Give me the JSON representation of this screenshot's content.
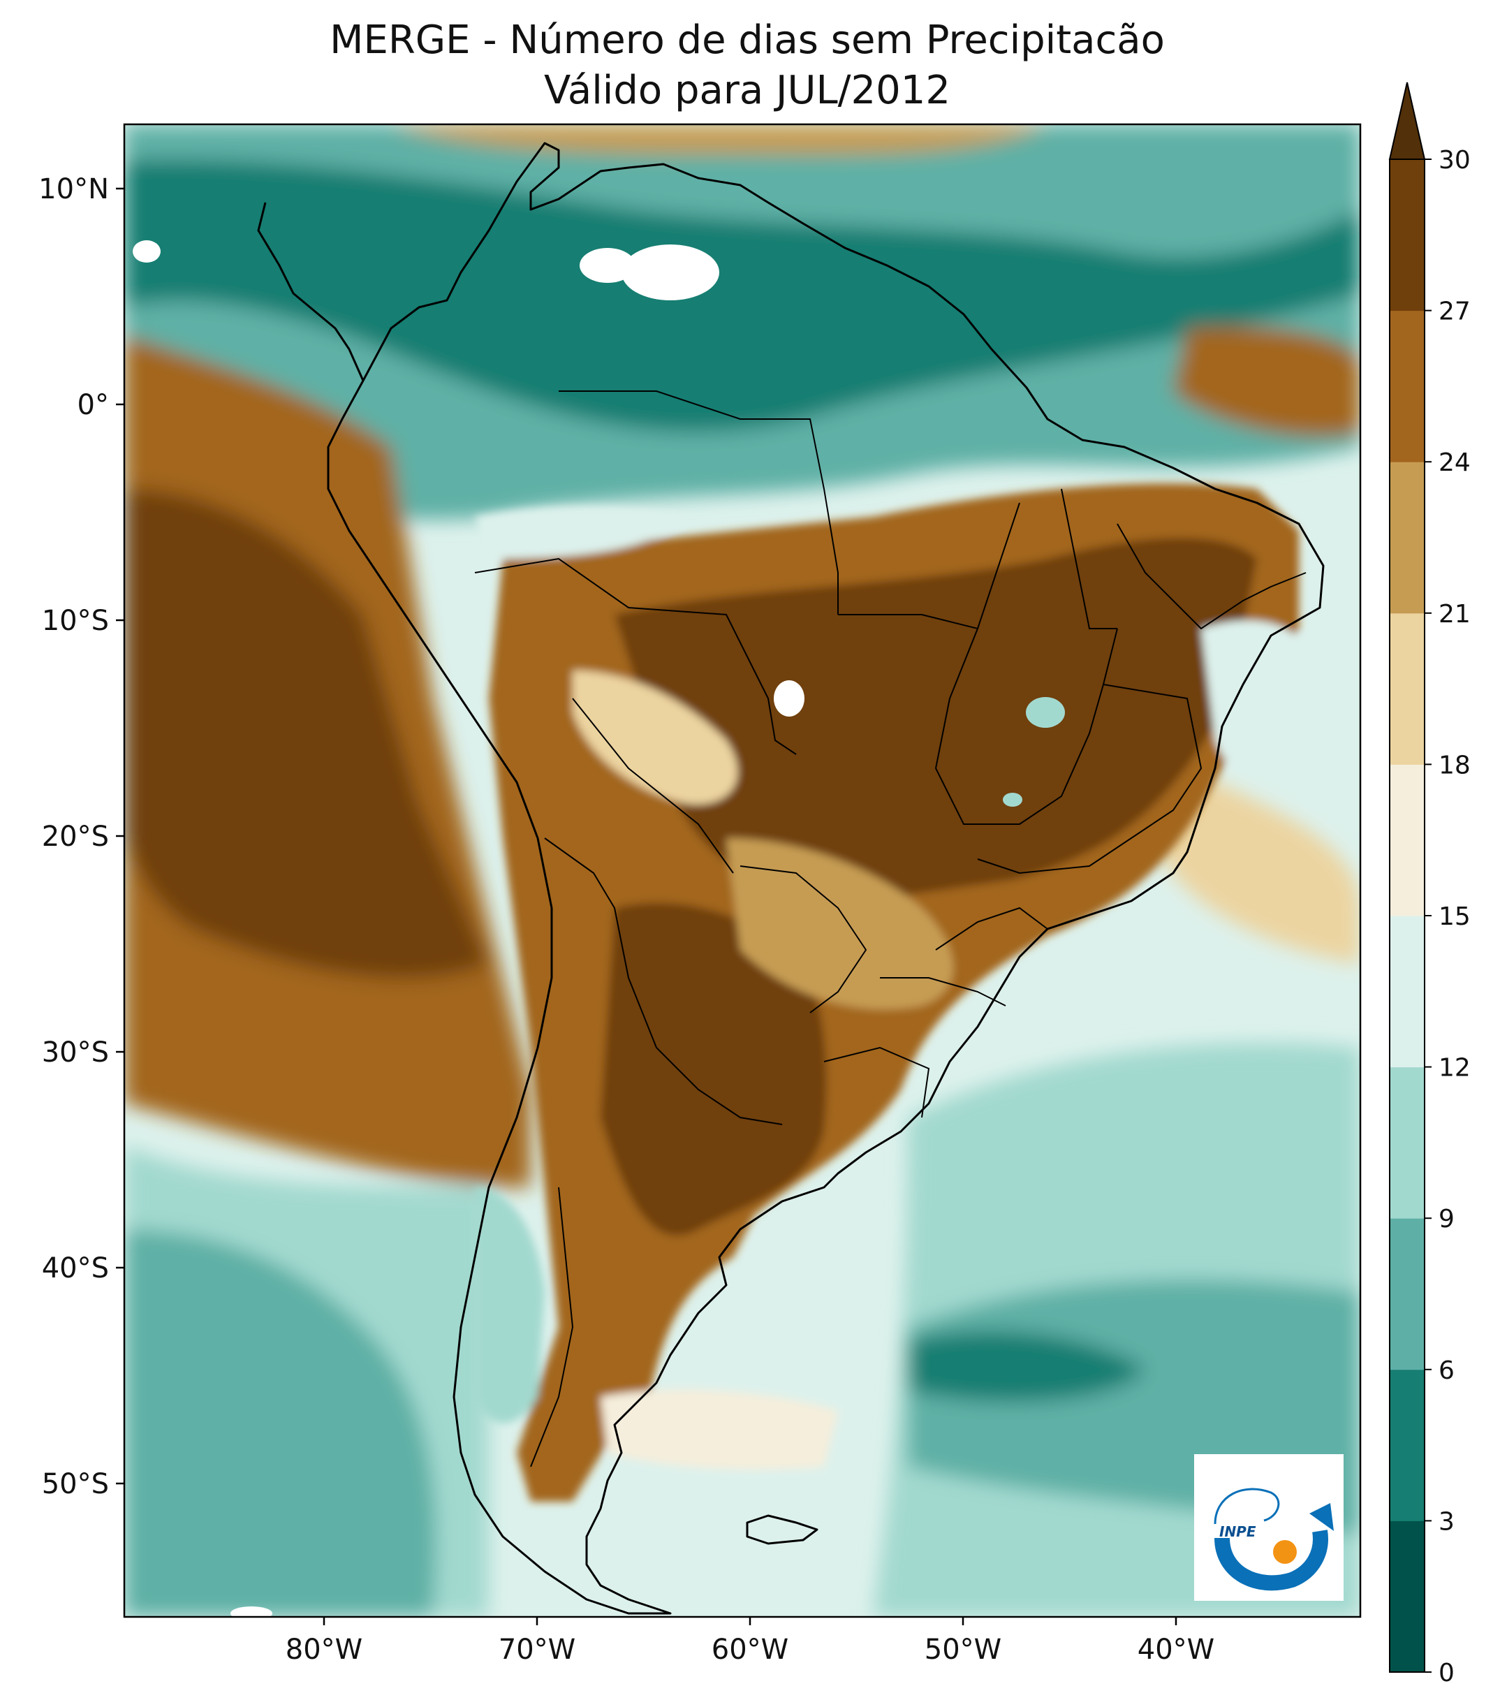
{
  "title": {
    "line1": "MERGE - Número de dias sem Precipitacão",
    "line2": "Válido para JUL/2012"
  },
  "axes": {
    "lat_ticks": [
      {
        "value": 10,
        "label": "10°N"
      },
      {
        "value": 0,
        "label": "0°"
      },
      {
        "value": -10,
        "label": "10°S"
      },
      {
        "value": -20,
        "label": "20°S"
      },
      {
        "value": -30,
        "label": "30°S"
      },
      {
        "value": -40,
        "label": "40°S"
      },
      {
        "value": -50,
        "label": "50°S"
      }
    ],
    "lon_ticks": [
      {
        "value": -80,
        "label": "80°W"
      },
      {
        "value": -70,
        "label": "70°W"
      },
      {
        "value": -60,
        "label": "60°W"
      },
      {
        "value": -50,
        "label": "50°W"
      },
      {
        "value": -40,
        "label": "40°W"
      }
    ]
  },
  "colorbar": {
    "levels": [
      0,
      3,
      6,
      9,
      12,
      15,
      18,
      21,
      24,
      27,
      30
    ],
    "labels": [
      "0",
      "3",
      "6",
      "9",
      "12",
      "15",
      "18",
      "21",
      "24",
      "27",
      "30"
    ],
    "colors": [
      "#01524a",
      "#167e72",
      "#5eb0a6",
      "#a2d9cf",
      "#ddf1ec",
      "#f5eedc",
      "#ecd4a0",
      "#c69c52",
      "#a3661f",
      "#6f400b"
    ],
    "extend_color": "#523009"
  },
  "colors": {
    "land_dry": "#6f400b",
    "ocean_wet": "#167e72",
    "border": "#000000",
    "logo_blue": "#0a70b8",
    "logo_orange": "#f39314"
  },
  "logo": {
    "text": "INPE"
  }
}
